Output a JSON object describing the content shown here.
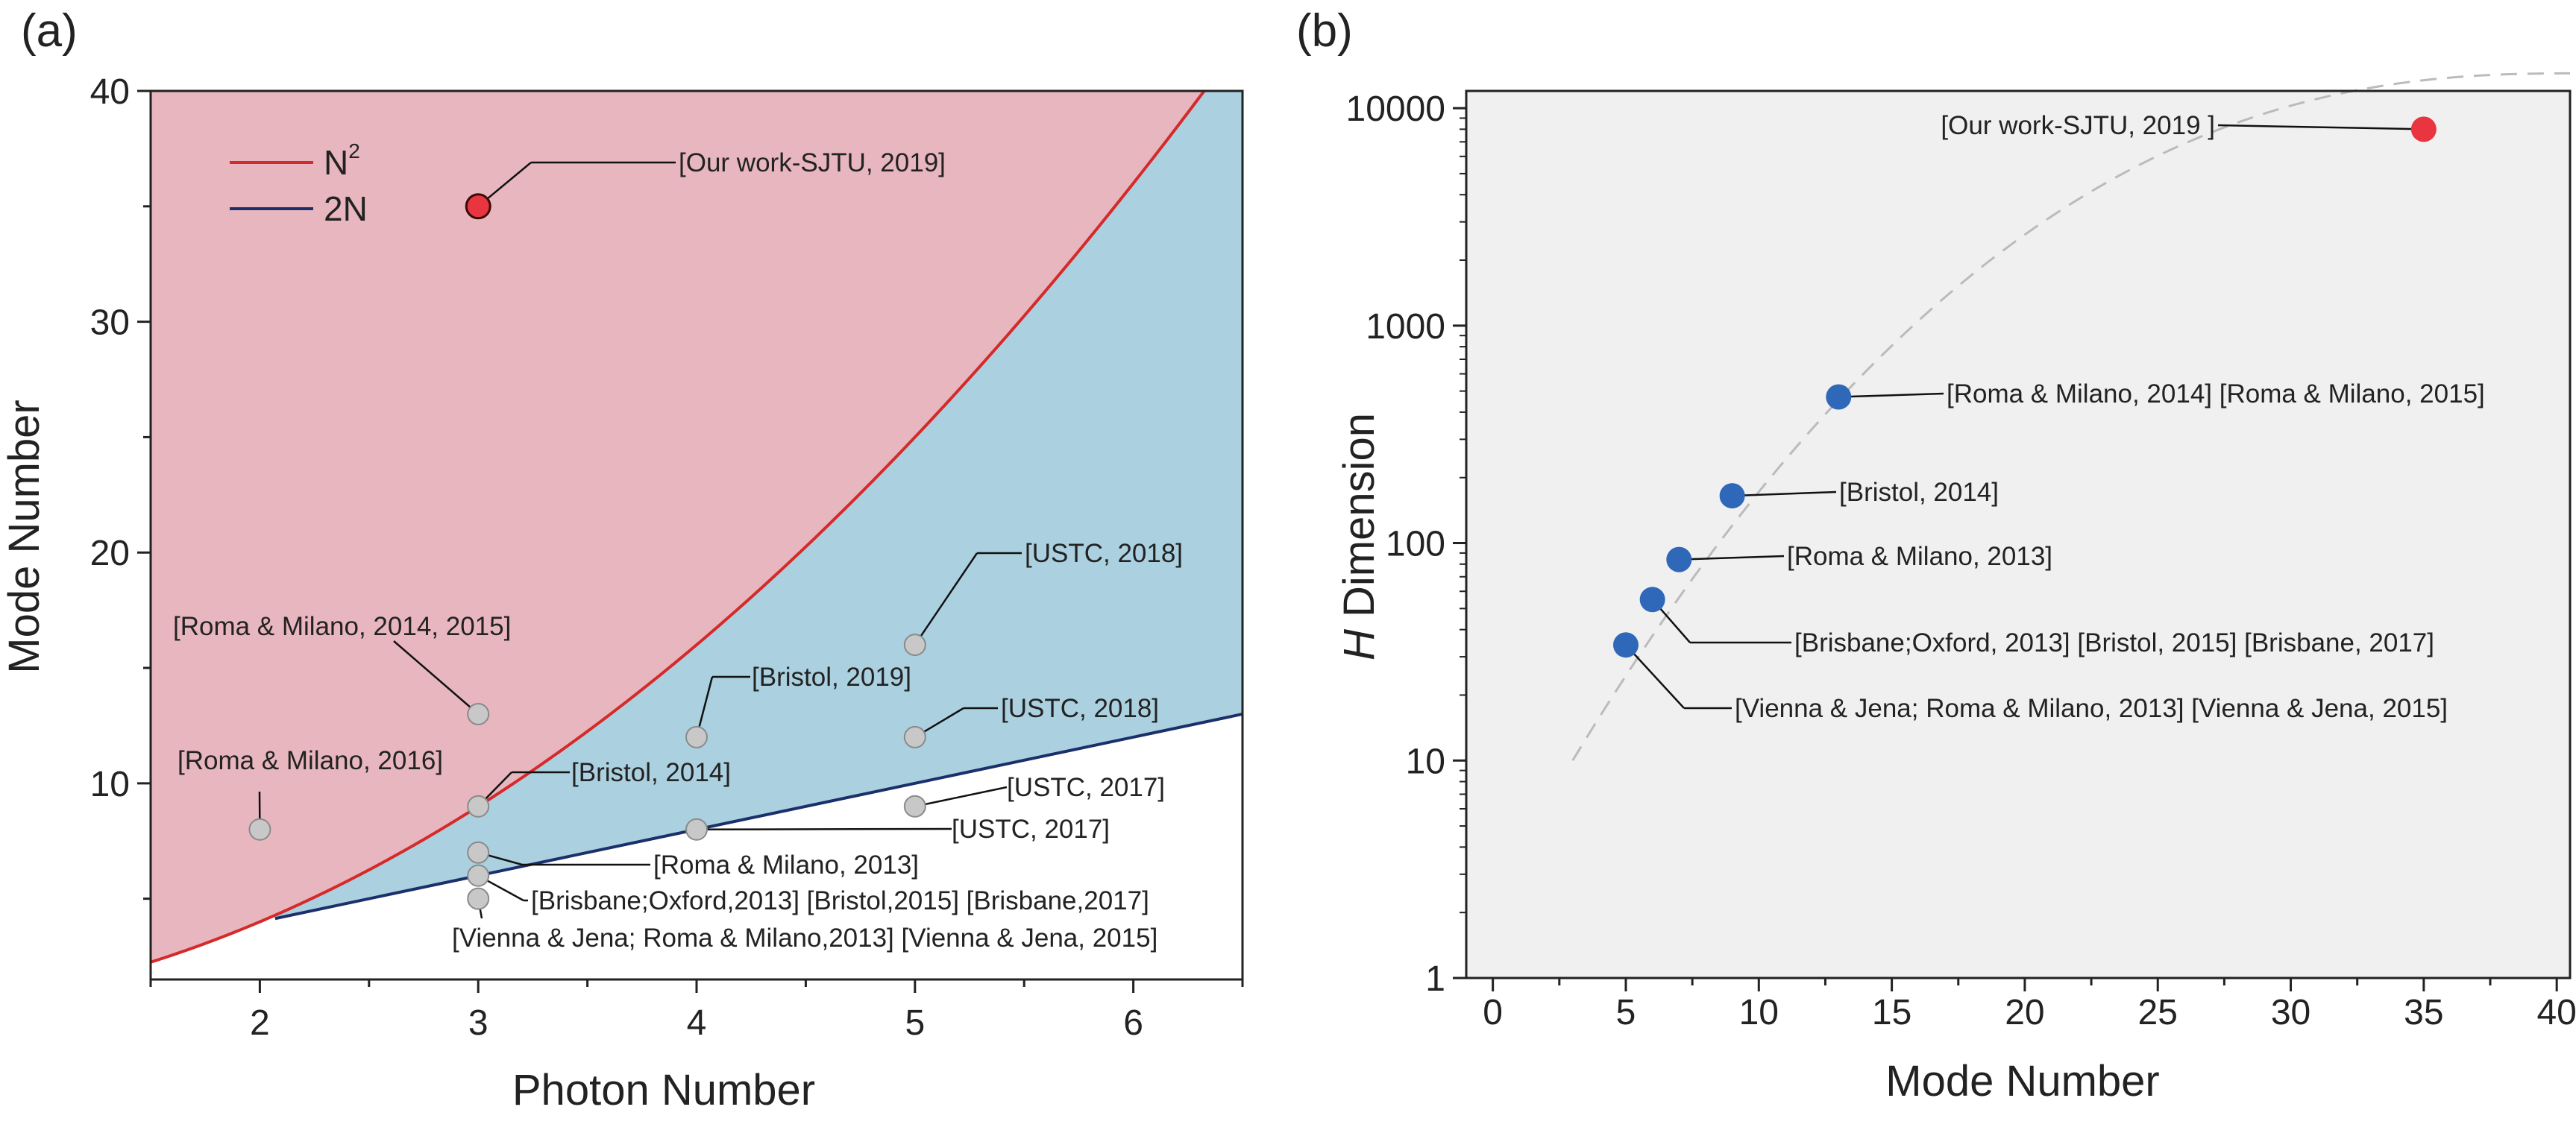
{
  "chart_data": [
    {
      "panel": "(a)",
      "type": "scatter",
      "xlabel": "Photon Number",
      "ylabel": "Mode Number",
      "xlim": [
        1.5,
        6.5
      ],
      "ylim": [
        1.5,
        40
      ],
      "xticks": [
        2,
        3,
        4,
        5,
        6
      ],
      "yticks": [
        10,
        20,
        30,
        40
      ],
      "fill_colors": {
        "above_n2": "#e8b6be",
        "between": "#abd0e0",
        "below_2n": "#ffffff"
      },
      "curves": [
        {
          "name": "N²",
          "label_base": "N",
          "label_sup": "2",
          "formula": "x^2",
          "color": "#d42a2a"
        },
        {
          "name": "2N",
          "label_base": "2N",
          "label_sup": "",
          "formula": "2x",
          "color": "#1b2f6b"
        }
      ],
      "points": [
        {
          "x": 3,
          "y": 35,
          "label": "[Our work-SJTU, 2019]",
          "highlight": true
        },
        {
          "x": 3,
          "y": 13,
          "label": "[Roma & Milano, 2014, 2015]"
        },
        {
          "x": 2,
          "y": 8,
          "label": "[Roma & Milano, 2016]"
        },
        {
          "x": 3,
          "y": 9,
          "label": "[Bristol, 2014]"
        },
        {
          "x": 3,
          "y": 7,
          "label": "[Roma & Milano, 2013]"
        },
        {
          "x": 3,
          "y": 6,
          "label": "[Brisbane;Oxford,2013] [Bristol,2015] [Brisbane,2017]"
        },
        {
          "x": 3,
          "y": 5,
          "label": "[Vienna & Jena; Roma & Milano,2013] [Vienna & Jena, 2015]"
        },
        {
          "x": 4,
          "y": 12,
          "label": "[Bristol, 2019]"
        },
        {
          "x": 4,
          "y": 8,
          "label": "[USTC, 2017]"
        },
        {
          "x": 5,
          "y": 16,
          "label": "[USTC, 2018]"
        },
        {
          "x": 5,
          "y": 12,
          "label": "[USTC, 2018]"
        },
        {
          "x": 5,
          "y": 9,
          "label": "[USTC, 2017]"
        }
      ],
      "point_colors": {
        "normal": "#c8c8c8",
        "highlight": "#e8353f"
      }
    },
    {
      "panel": "(b)",
      "type": "scatter",
      "xlabel": "Mode Number",
      "ylabel_italic": "H",
      "ylabel_rest": " Dimension",
      "xlim": [
        -1,
        40.5
      ],
      "ylim": [
        1,
        12000
      ],
      "yscale": "log",
      "xticks": [
        0,
        5,
        10,
        15,
        20,
        25,
        30,
        35,
        40
      ],
      "yticks": [
        1,
        10,
        100,
        1000,
        10000
      ],
      "background": "#f0f0f0",
      "trend": {
        "style": "dashed",
        "color": "#bbbbbb",
        "x_start": 3,
        "x_end": 40.5
      },
      "points": [
        {
          "x": 35,
          "y": 8000,
          "label": "[Our work-SJTU,  2019 ]",
          "highlight": true
        },
        {
          "x": 13,
          "y": 470,
          "label": "[Roma & Milano, 2014] [Roma & Milano, 2015]"
        },
        {
          "x": 9,
          "y": 165,
          "label": "[Bristol, 2014]"
        },
        {
          "x": 7,
          "y": 84,
          "label": "[Roma & Milano, 2013]"
        },
        {
          "x": 6,
          "y": 55,
          "label": "[Brisbane;Oxford, 2013] [Bristol, 2015] [Brisbane, 2017]"
        },
        {
          "x": 5,
          "y": 34,
          "label": "[Vienna & Jena; Roma & Milano, 2013]  [Vienna & Jena, 2015]"
        }
      ],
      "point_colors": {
        "normal": "#2f68b8",
        "highlight": "#e8353f"
      }
    }
  ]
}
